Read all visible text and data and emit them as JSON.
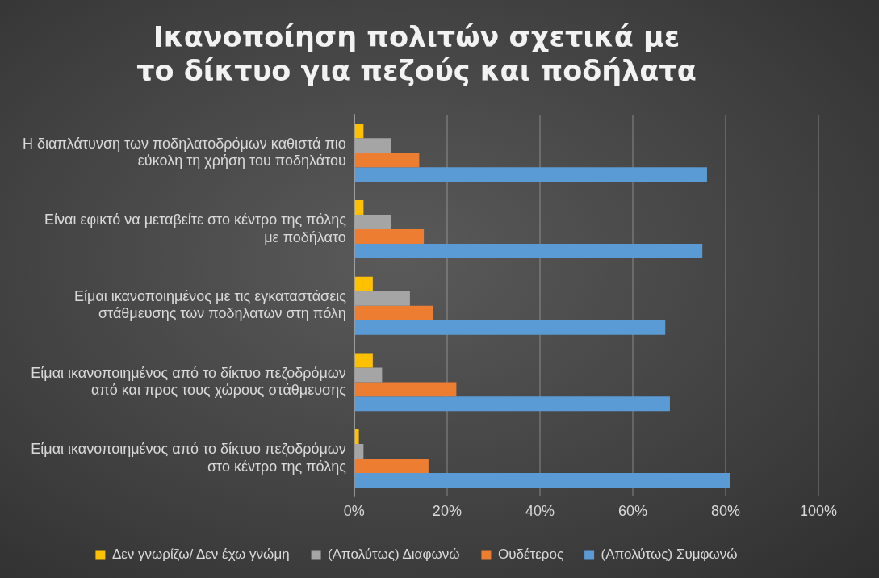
{
  "chart_data": {
    "type": "bar",
    "orientation": "horizontal",
    "title": "Ικανοποίηση πολιτών σχετικά με το δίκτυο για πεζούς και ποδήλατα",
    "categories": [
      "Η διαπλάτυνση των ποδηλατοδρόμων καθιστά πιο εύκολη τη χρήση του ποδηλάτου",
      "Είναι εφικτό να μεταβείτε στο κέντρο της πόλης με ποδήλατο",
      "Είμαι ικανοποιημένος με τις εγκαταστάσεις στάθμευσης των ποδηλατων στη πόλη",
      "Είμαι ικανοποιημένος από το δίκτυο πεζοδρόμων από και προς τους χώρους στάθμευσης",
      "Είμαι ικανοποιημένος από το δίκτυο πεζοδρόμων στο κέντρο της πόλης"
    ],
    "series": [
      {
        "name": "Δεν γνωρίζω/ Δεν έχω γνώμη",
        "color": "#ffc000",
        "values": [
          2,
          2,
          4,
          4,
          1
        ]
      },
      {
        "name": "(Απολύτως) Διαφωνώ",
        "color": "#a5a5a5",
        "values": [
          8,
          8,
          12,
          6,
          2
        ]
      },
      {
        "name": "Ουδέτερος",
        "color": "#ed7d31",
        "values": [
          14,
          15,
          17,
          22,
          16
        ]
      },
      {
        "name": "(Απολύτως) Συμφωνώ",
        "color": "#5b9bd5",
        "values": [
          76,
          75,
          67,
          68,
          81
        ]
      }
    ],
    "xlim": [
      0,
      100
    ],
    "xticks": [
      {
        "value": 0,
        "label": "0%"
      },
      {
        "value": 20,
        "label": "20%"
      },
      {
        "value": 40,
        "label": "40%"
      },
      {
        "value": 60,
        "label": "60%"
      },
      {
        "value": 80,
        "label": "80%"
      },
      {
        "value": 100,
        "label": "100%"
      }
    ],
    "grid": "x",
    "legend": "bottom"
  }
}
